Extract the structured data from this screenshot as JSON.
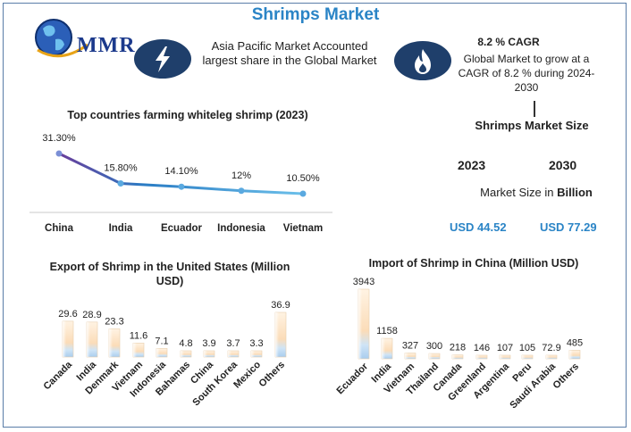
{
  "title": "Shrimps Market",
  "logo": {
    "text": "MMR"
  },
  "colors": {
    "accent": "#2a84c6",
    "navy": "#1f3f6b",
    "bar_top": "#fde4c4",
    "bar_bottom": "#b9d7f2"
  },
  "icons": {
    "bolt": "lightning-bolt-icon",
    "fire": "flame-icon",
    "logo": "globe-icon"
  },
  "asia_pacific_text": "Asia Pacific Market Accounted largest share in the Global Market",
  "cagr": {
    "title": "8.2 % CAGR",
    "text": "Global Market to grow at a CAGR of 8.2 % during 2024-2030"
  },
  "market_size": {
    "title": "Shrimps Market Size",
    "year_1": "2023",
    "year_2": "2030",
    "label_prefix": "Market Size in ",
    "label_unit": "Billion",
    "value_1": "USD 44.52",
    "value_2": "USD 77.29"
  },
  "chart_data": [
    {
      "type": "line",
      "title": "Top countries farming whiteleg shrimp (2023)",
      "categories": [
        "China",
        "India",
        "Ecuador",
        "Indonesia",
        "Vietnam"
      ],
      "values": [
        31.3,
        15.8,
        14.1,
        12,
        10.5
      ],
      "labels": [
        "31.30%",
        "15.80%",
        "14.10%",
        "12%",
        "10.50%"
      ],
      "ylim": [
        0,
        40
      ]
    },
    {
      "type": "bar",
      "title": "Export of Shrimp in the United States (Million USD)",
      "categories": [
        "Canada",
        "India",
        "Denmark",
        "Vietnam",
        "Indonesia",
        "Bahamas",
        "China",
        "South Korea",
        "Mexico",
        "Others"
      ],
      "values": [
        29.6,
        28.9,
        23.3,
        11.6,
        7.1,
        4.8,
        3.9,
        3.7,
        3.3,
        36.9
      ],
      "labels": [
        "29.6",
        "28.9",
        "23.3",
        "11.6",
        "7.1",
        "4.8",
        "3.9",
        "3.7",
        "3.3",
        "36.9"
      ]
    },
    {
      "type": "bar",
      "title": "Import of Shrimp in China (Million USD)",
      "categories": [
        "Ecuador",
        "India",
        "Vietnam",
        "Thailand",
        "Canada",
        "Greenland",
        "Argentina",
        "Peru",
        "Saudi Arabia",
        "Others"
      ],
      "values": [
        3943,
        1158,
        327,
        300,
        218,
        146,
        107,
        105,
        72.9,
        485
      ],
      "labels": [
        "3943",
        "1158",
        "327",
        "300",
        "218",
        "146",
        "107",
        "105",
        "72.9",
        "485"
      ]
    }
  ]
}
